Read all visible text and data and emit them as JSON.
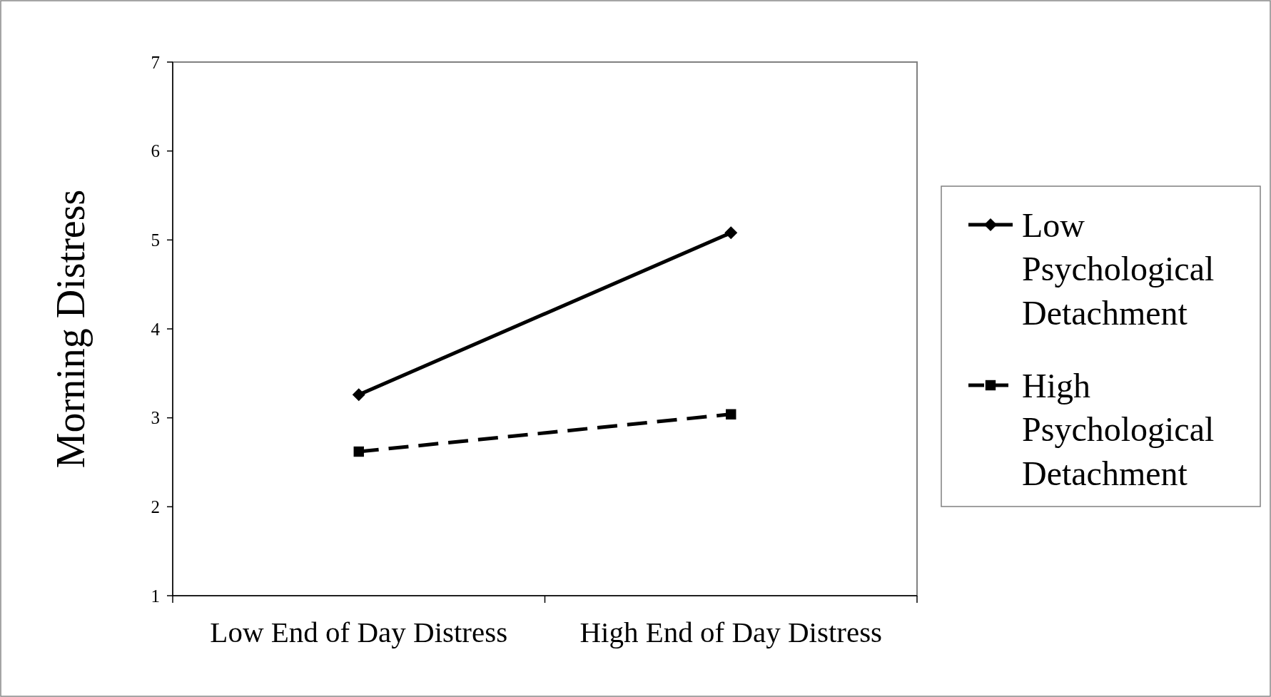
{
  "chart_data": {
    "type": "line",
    "ylabel": "Morning Distress",
    "categories": [
      "Low End of Day Distress",
      "High End of Day Distress"
    ],
    "series": [
      {
        "name": "Low Psychological Detachment",
        "color": "#000000",
        "values": [
          3.26,
          5.08
        ],
        "marker": "diamond",
        "line_style": "solid"
      },
      {
        "name": "High Psychological Detachment",
        "color": "#000000",
        "values": [
          2.62,
          3.04
        ],
        "marker": "square",
        "line_style": "dashed"
      }
    ],
    "ylim": [
      1,
      7
    ],
    "yticks": [
      1,
      2,
      3,
      4,
      5,
      6,
      7
    ],
    "grid": false,
    "legend": "right"
  }
}
